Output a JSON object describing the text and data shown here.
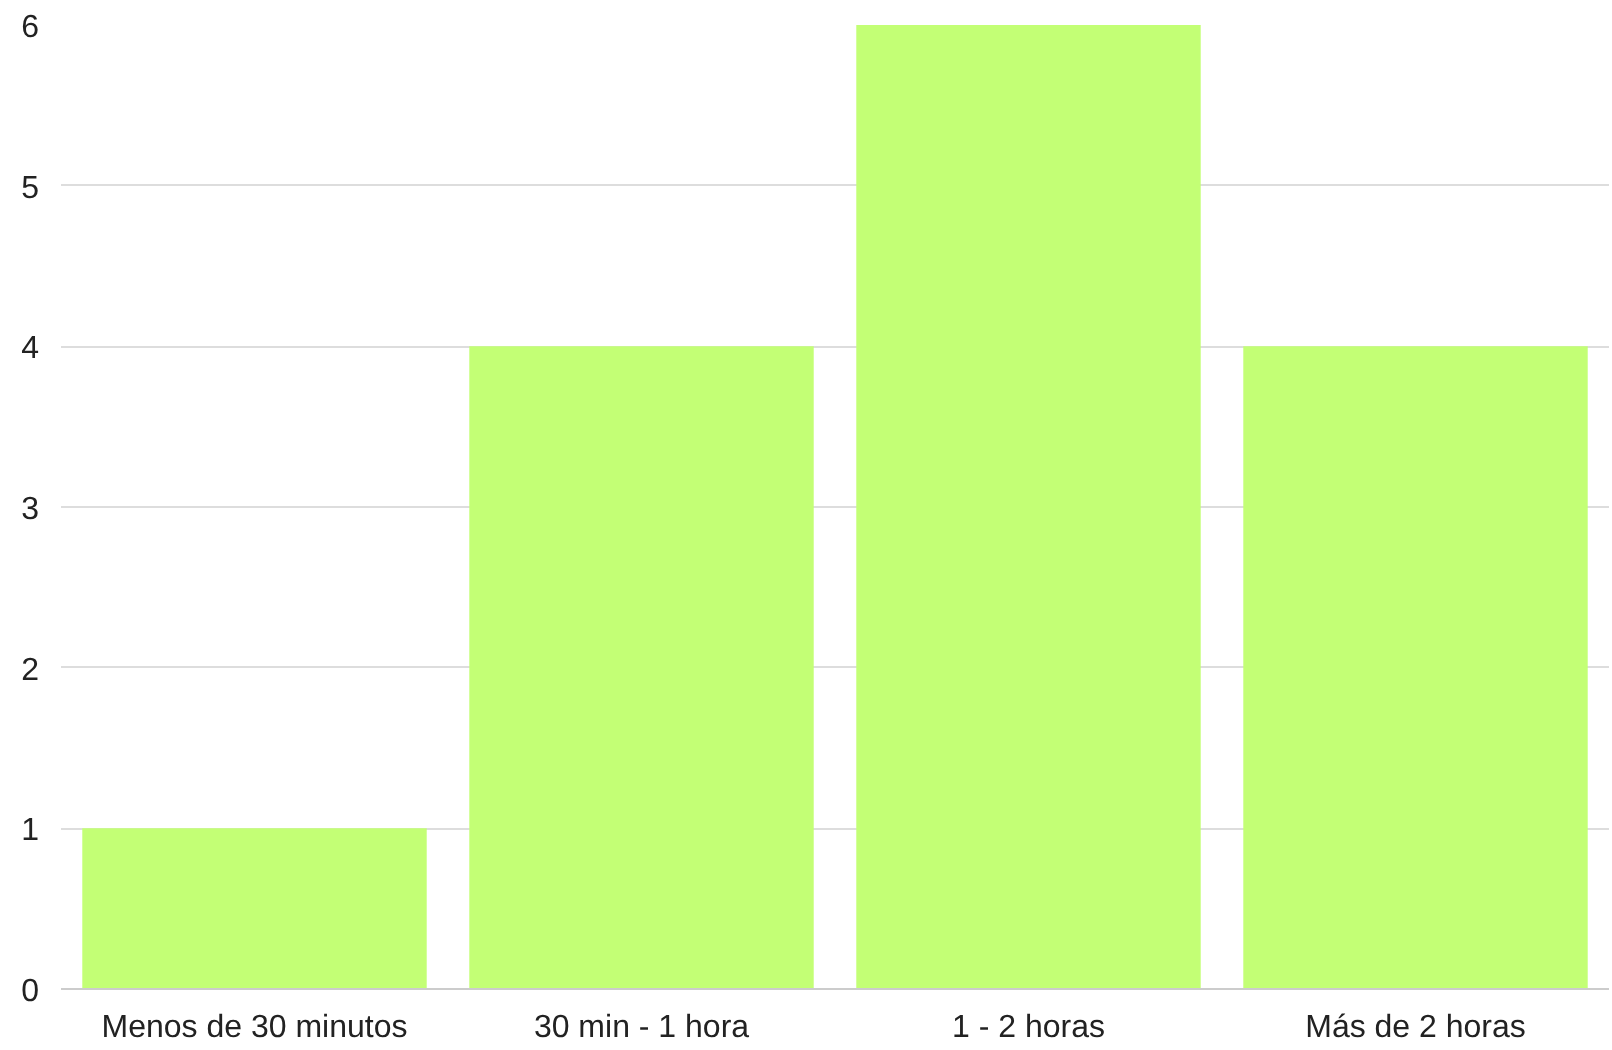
{
  "chart_data": {
    "type": "bar",
    "categories": [
      "Menos de 30 minutos",
      "30 min - 1 hora",
      "1 - 2 horas",
      "Más de 2 horas"
    ],
    "values": [
      1,
      4,
      6,
      4
    ],
    "color": "#c3ff75",
    "ylim": [
      0,
      6
    ],
    "yticks": [
      0,
      1,
      2,
      3,
      4,
      5,
      6
    ],
    "grid": "y"
  }
}
